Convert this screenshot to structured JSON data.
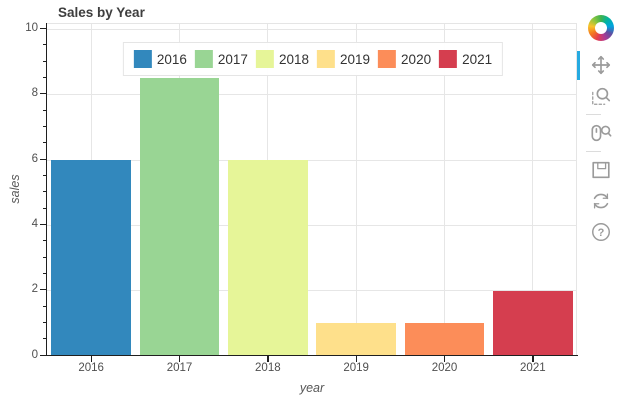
{
  "title": "Sales by Year",
  "chart_data": {
    "type": "bar",
    "title": "Sales by Year",
    "categories": [
      "2016",
      "2017",
      "2018",
      "2019",
      "2020",
      "2021"
    ],
    "values": [
      6,
      8.5,
      6,
      1,
      1,
      2
    ],
    "colors": [
      "#3288bd",
      "#99d594",
      "#e6f598",
      "#fee08b",
      "#fc8d59",
      "#d53e4f"
    ],
    "xlabel": "year",
    "ylabel": "sales",
    "ylim": [
      0,
      10
    ],
    "y_ticks": [
      0,
      2,
      4,
      6,
      8,
      10
    ],
    "y_minor_tick_step": 0.5,
    "grid": true,
    "legend_entries": [
      "2016",
      "2017",
      "2018",
      "2019",
      "2020",
      "2021"
    ],
    "legend_position": "top_center",
    "bar_width_fraction": 0.9
  },
  "toolbar": {
    "logo": "bokeh-logo",
    "active_tool": "pan",
    "tools": [
      {
        "name": "pan",
        "active": true
      },
      {
        "name": "box-zoom",
        "active": false
      },
      {
        "name": "wheel-zoom",
        "active": false
      },
      {
        "name": "save",
        "active": false
      },
      {
        "name": "reset",
        "active": false
      },
      {
        "name": "help",
        "active": false,
        "glyph": "?"
      }
    ]
  },
  "colors": {
    "active_tool_indicator": "#26aae1",
    "grid_line": "#e6e6e6",
    "axis_line": "#1f1f1f",
    "title_text": "#3e3e3e",
    "tick_label_text": "#4f4f4f",
    "background": "#ffffff"
  }
}
